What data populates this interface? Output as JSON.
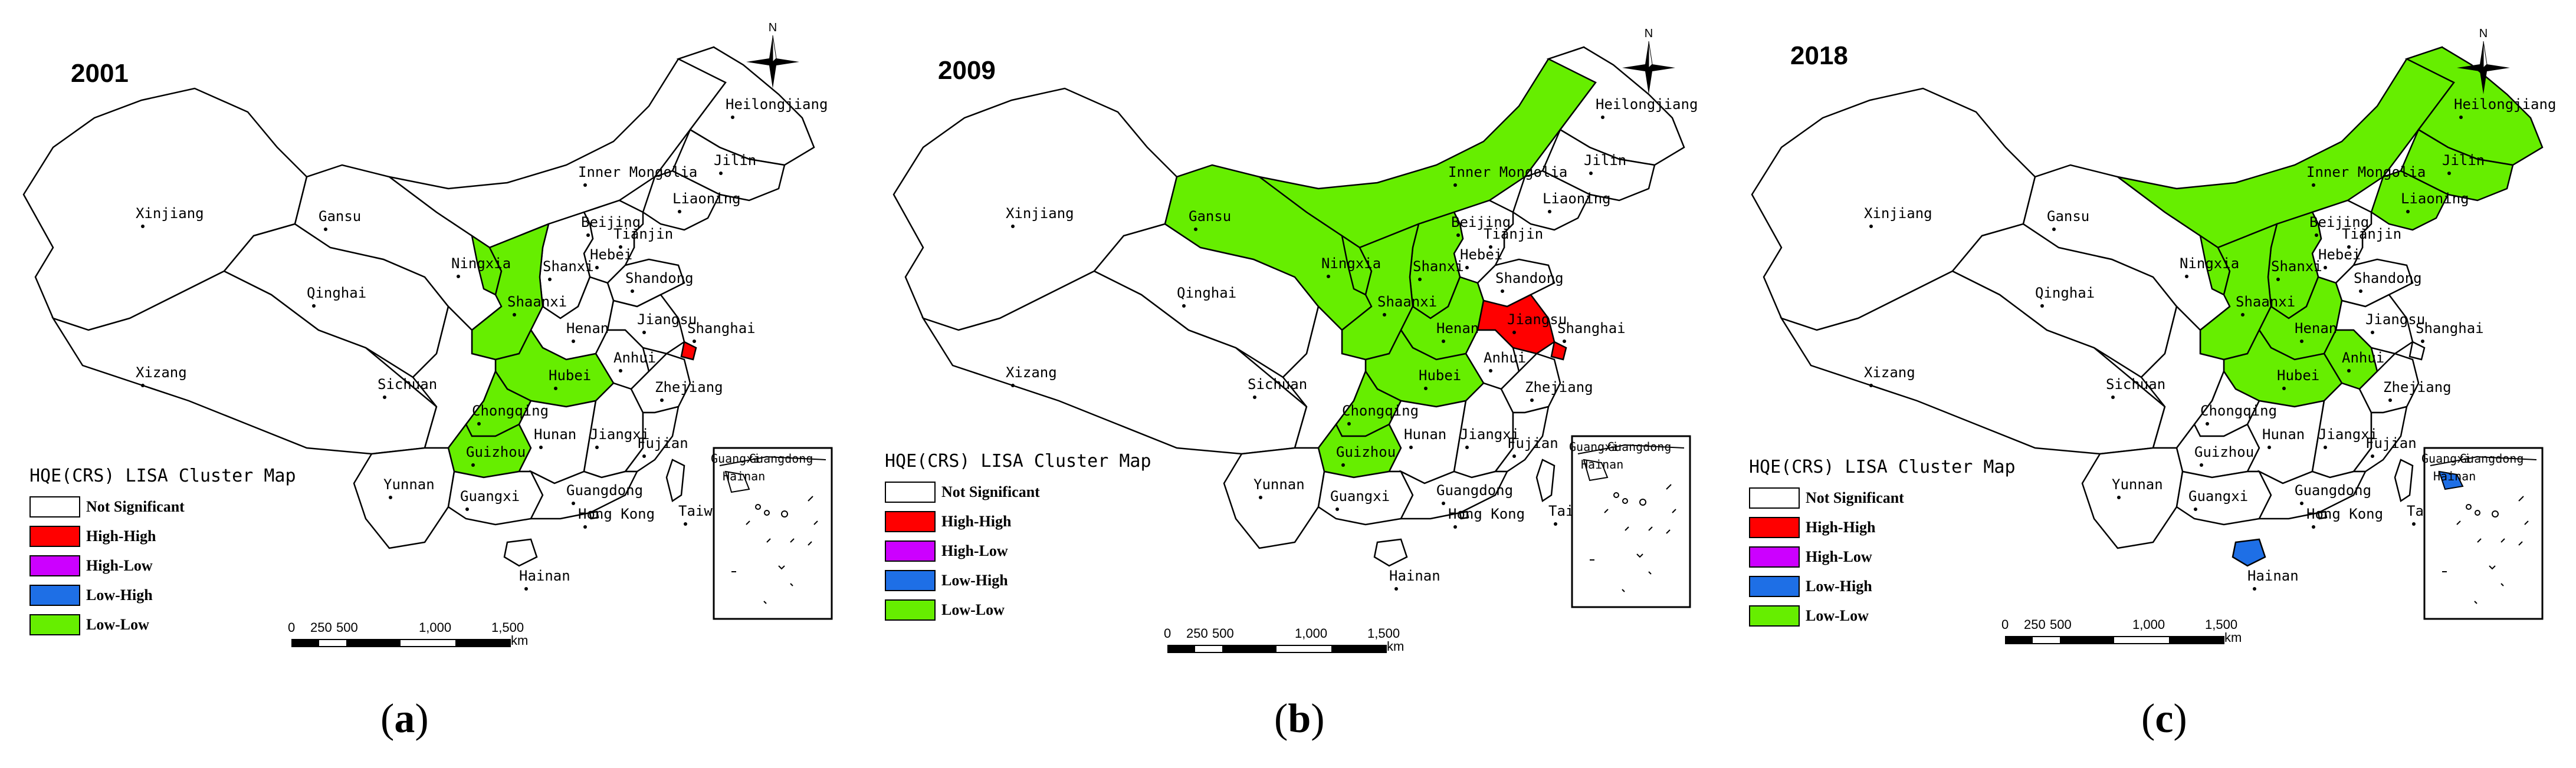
{
  "colors": {
    "not_significant": "#ffffff",
    "high_high": "#ff0000",
    "high_low": "#cc00ff",
    "low_high": "#1e6fe6",
    "low_low": "#66ee00"
  },
  "legend": {
    "title": "HQE(CRS) LISA Cluster Map",
    "items": [
      {
        "label": "Not Significant",
        "color": "#ffffff"
      },
      {
        "label": "High-High",
        "color": "#ff0000"
      },
      {
        "label": "High-Low",
        "color": "#cc00ff"
      },
      {
        "label": "Low-High",
        "color": "#1e6fe6"
      },
      {
        "label": "Low-Low",
        "color": "#66ee00"
      }
    ]
  },
  "north_label": "N",
  "scale": {
    "ticks": [
      "0",
      "250",
      "500",
      "1,000",
      "1,500"
    ],
    "unit": "km"
  },
  "inset_labels": [
    "Guangxi",
    "Guangdong",
    "Hainan"
  ],
  "province_labels": [
    "Xinjiang",
    "Xizang",
    "Qinghai",
    "Gansu",
    "Inner Mongolia",
    "Heilongjiang",
    "Jilin",
    "Liaoning",
    "Beijing",
    "Tianjin",
    "Hebei",
    "Shanxi",
    "Shandong",
    "Ningxia",
    "Shaanxi",
    "Henan",
    "Jiangsu",
    "Shanghai",
    "Anhui",
    "Hubei",
    "Sichuan",
    "Chongqing",
    "Guizhou",
    "Yunnan",
    "Hunan",
    "Jiangxi",
    "Zhejiang",
    "Fujian",
    "Guangxi",
    "Guangdong",
    "Hong Kong",
    "Taiwan",
    "Hainan"
  ],
  "panels": [
    {
      "year": "2001",
      "caption_open": "(",
      "caption_letter": "a",
      "caption_close": ")",
      "clusters": {
        "Low-Low": [
          "Shaanxi",
          "Ningxia",
          "Hubei",
          "Chongqing",
          "Guizhou"
        ],
        "High-High": [
          "Shanghai"
        ],
        "High-Low": [],
        "Low-High": []
      }
    },
    {
      "year": "2009",
      "caption_open": "(",
      "caption_letter": "b",
      "caption_close": ")",
      "clusters": {
        "Low-Low": [
          "Gansu",
          "Inner Mongolia",
          "Ningxia",
          "Shaanxi",
          "Shanxi",
          "Henan",
          "Hubei",
          "Chongqing",
          "Guizhou"
        ],
        "High-High": [
          "Jiangsu",
          "Shanghai"
        ],
        "High-Low": [],
        "Low-High": []
      }
    },
    {
      "year": "2018",
      "caption_open": "(",
      "caption_letter": "c",
      "caption_close": ")",
      "clusters": {
        "Low-Low": [
          "Inner Mongolia",
          "Heilongjiang",
          "Jilin",
          "Liaoning",
          "Shanxi",
          "Ningxia",
          "Shaanxi",
          "Henan",
          "Anhui",
          "Hubei"
        ],
        "High-High": [],
        "High-Low": [],
        "Low-High": [
          "Hainan"
        ]
      }
    }
  ]
}
